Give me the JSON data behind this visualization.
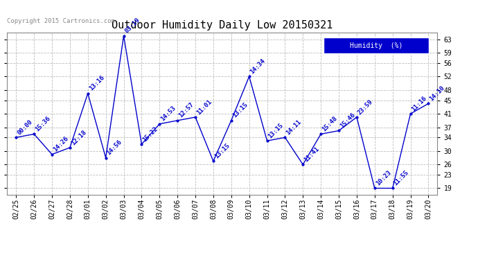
{
  "title": "Outdoor Humidity Daily Low 20150321",
  "copyright_text": "Copyright 2015 Cartronics.com",
  "legend_label": "Humidity  (%)",
  "background_color": "#ffffff",
  "plot_bg_color": "#ffffff",
  "grid_color": "#bbbbbb",
  "line_color": "#0000cc",
  "x_labels": [
    "02/25",
    "02/26",
    "02/27",
    "02/28",
    "03/01",
    "03/02",
    "03/03",
    "03/04",
    "03/05",
    "03/06",
    "03/07",
    "03/08",
    "03/09",
    "03/10",
    "03/11",
    "03/12",
    "03/13",
    "03/14",
    "03/15",
    "03/16",
    "03/17",
    "03/18",
    "03/19",
    "03/20"
  ],
  "y_values": [
    34,
    35,
    29,
    31,
    47,
    28,
    64,
    32,
    38,
    39,
    40,
    27,
    39,
    52,
    33,
    34,
    26,
    35,
    36,
    40,
    19,
    19,
    41,
    44
  ],
  "point_labels": [
    "00:00",
    "15:36",
    "14:26",
    "12:18",
    "13:16",
    "14:56",
    "03:19",
    "15:22",
    "14:53",
    "12:57",
    "11:01",
    "13:15",
    "13:15",
    "14:34",
    "13:15",
    "14:11",
    "11:41",
    "15:48",
    "15:46",
    "23:59",
    "10:23",
    "11:55",
    "11:16",
    "14:10"
  ],
  "yticks": [
    19,
    23,
    26,
    30,
    34,
    37,
    41,
    45,
    48,
    52,
    56,
    59,
    63
  ],
  "ylim": [
    17,
    65
  ],
  "title_fontsize": 11,
  "tick_fontsize": 7,
  "label_fontsize": 6.5
}
